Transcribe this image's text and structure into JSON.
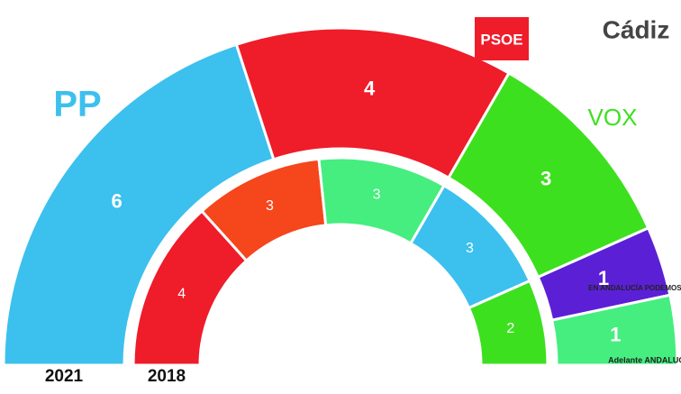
{
  "chart_data": {
    "type": "half-donut",
    "title": "Cádiz",
    "series": [
      {
        "name": "2021",
        "values": [
          6,
          4,
          3,
          1,
          1
        ],
        "labels": [
          "PP",
          "PSOE",
          "VOX",
          "EN ANDALUCÍA PODEMOS.",
          "Adelante ANDALUCÍA"
        ],
        "colors": [
          "#3cc0ee",
          "#ef1c2a",
          "#3de01f",
          "#5b20d6",
          "#45ee7f"
        ]
      },
      {
        "name": "2018",
        "values": [
          4,
          3,
          3,
          3,
          2
        ],
        "colors": [
          "#ef1c2a",
          "#f5461c",
          "#45ee7f",
          "#3cc0ee",
          "#3de01f"
        ]
      }
    ]
  }
}
